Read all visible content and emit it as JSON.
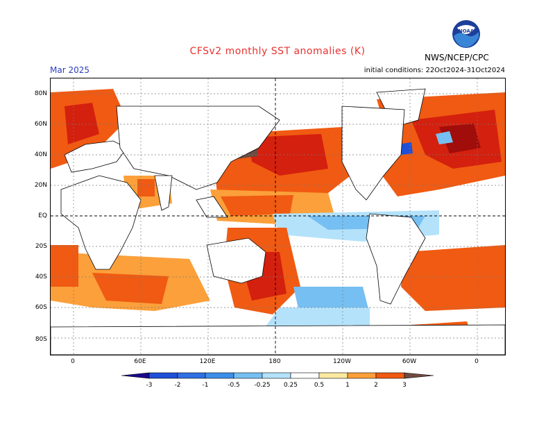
{
  "header": {
    "title": "CFSv2 monthly SST anomalies (K)",
    "month": "Mar 2025",
    "initial_conditions": "initial conditions: 22Oct2024-31Oct2024",
    "agency": "NWS/NCEP/CPC",
    "logo_text": "NOAA"
  },
  "colors": {
    "title": "#e8312f",
    "month": "#2b3fbe",
    "neg3": "#1a0a8c",
    "neg2": "#1f4fd6",
    "neg1": "#3c8fe8",
    "neg05": "#76bff2",
    "neg025": "#b4e2fb",
    "pos025": "#fbe9a2",
    "pos05": "#fba03a",
    "pos1": "#f05a12",
    "pos2": "#d4200e",
    "pos3": "#a00d0a",
    "max": "#6e4b42"
  },
  "map": {
    "lat_labels": [
      "80N",
      "60N",
      "40N",
      "20N",
      "EQ",
      "20S",
      "40S",
      "60S",
      "80S"
    ],
    "lon_labels": [
      "0",
      "60E",
      "120E",
      "180",
      "120W",
      "60W",
      "0"
    ]
  },
  "colorbar": {
    "ticks": [
      "-3",
      "-2",
      "-1",
      "-0.5",
      "-0.25",
      "0.25",
      "0.5",
      "1",
      "2",
      "3"
    ]
  }
}
